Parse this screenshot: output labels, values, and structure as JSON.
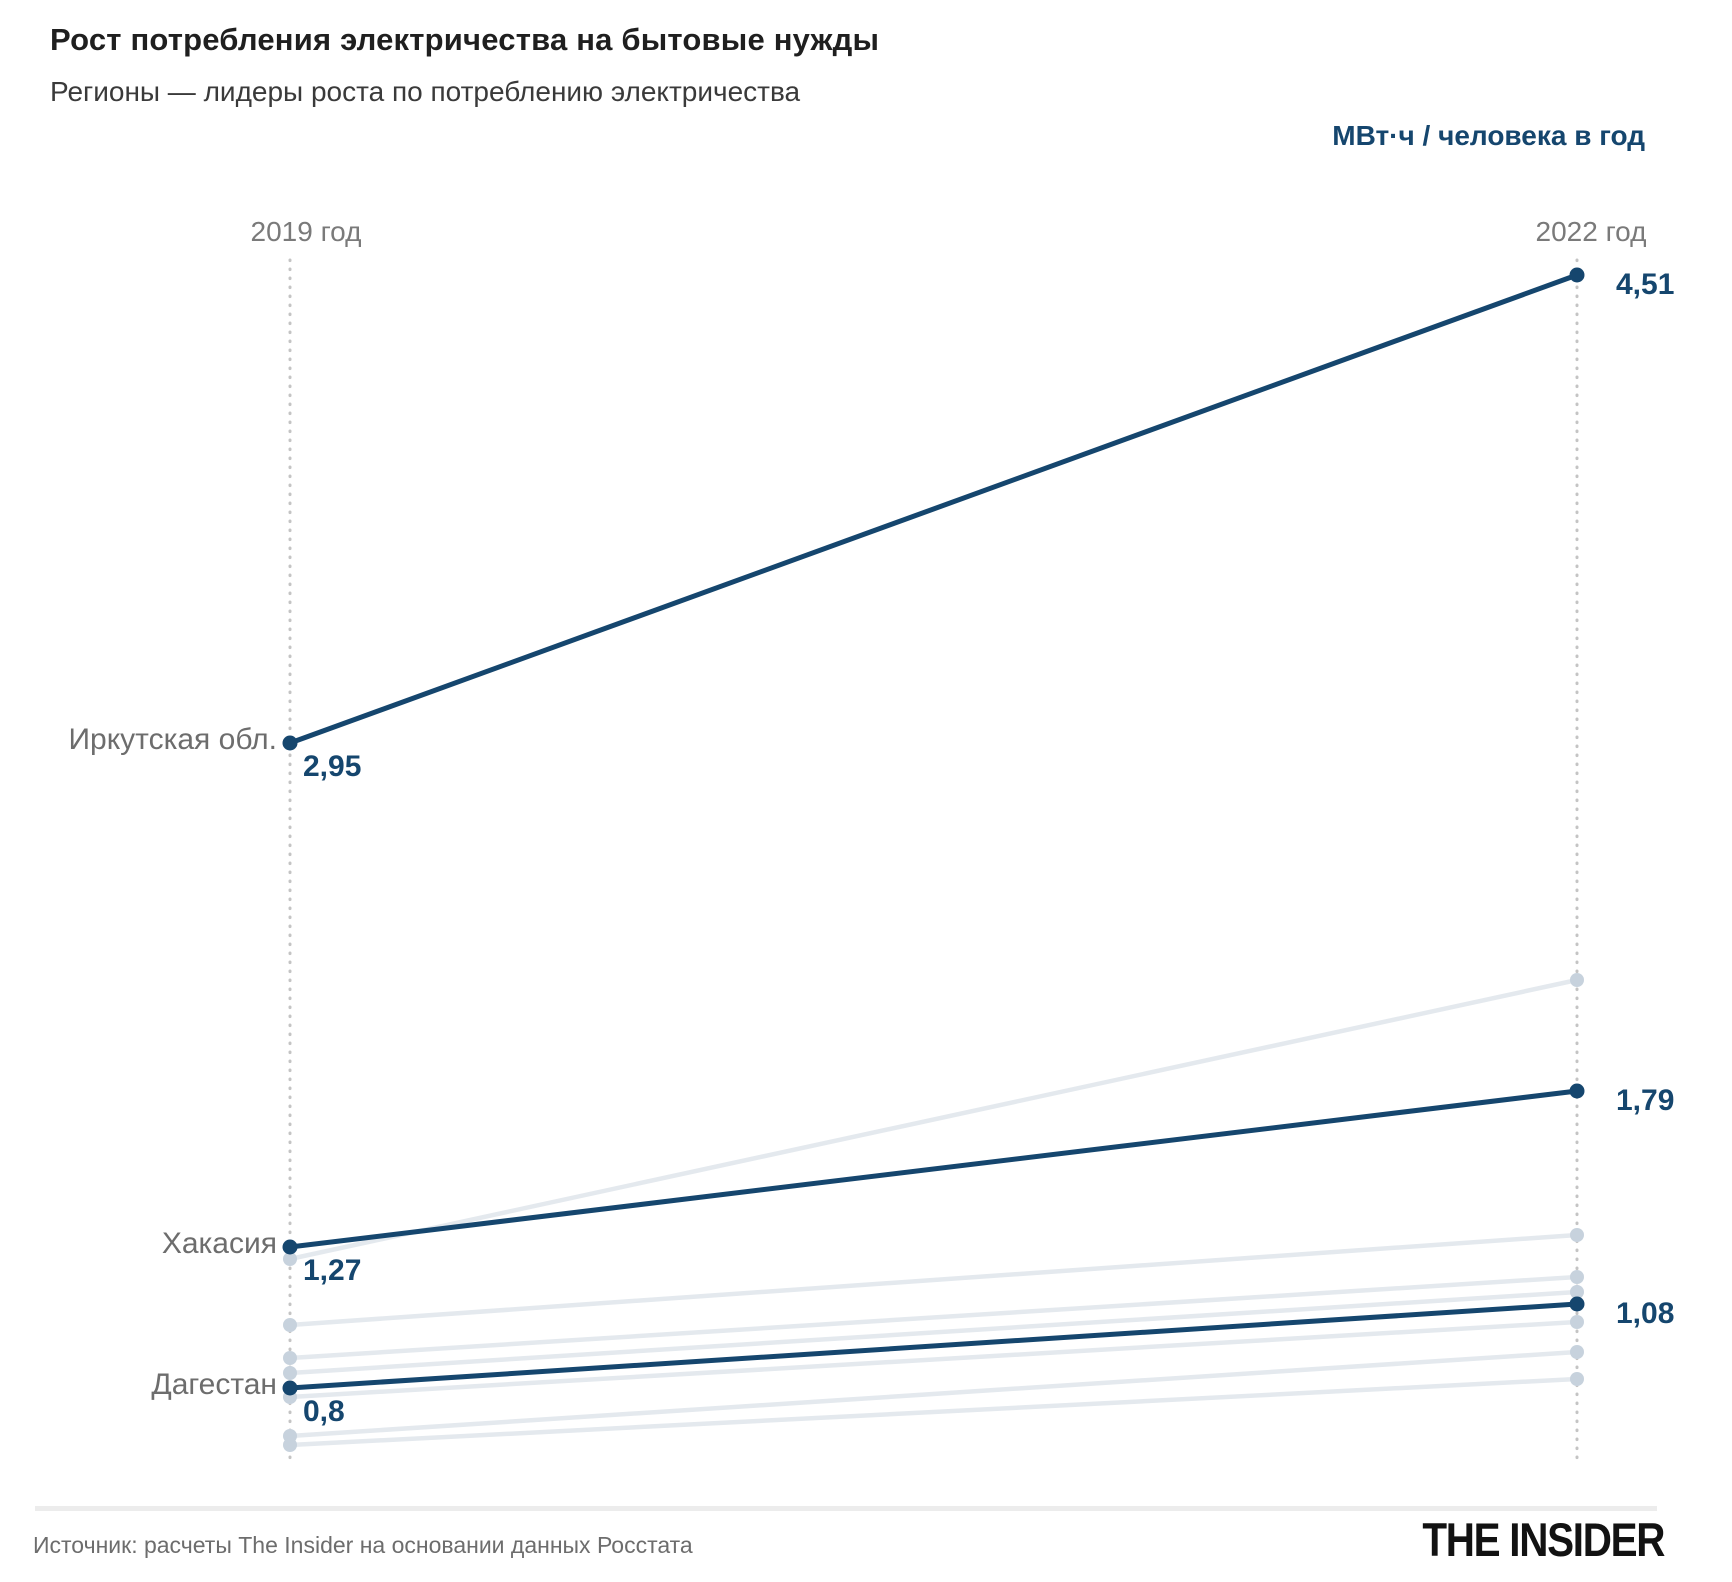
{
  "header": {
    "title": "Рост потребления электричества на бытовые нужды",
    "subtitle": "Регионы — лидеры роста по потреблению электричества",
    "unit_label": "МВт·ч / человека в год"
  },
  "chart_data": {
    "type": "line",
    "subtype": "slope-chart",
    "title": "Рост потребления электричества на бытовые нужды",
    "subtitle": "Регионы — лидеры роста по потреблению электричества",
    "unit": "МВт·ч / человека в год",
    "columns": [
      "2019 год",
      "2022 год"
    ],
    "ylim": [
      0.5,
      4.7
    ],
    "grid": false,
    "legend_position": "none",
    "series": [
      {
        "name": "Иркутская обл.",
        "values": [
          2.95,
          4.51
        ],
        "labels": [
          "2,95",
          "4,51"
        ],
        "highlight": true
      },
      {
        "name": "Хакасия",
        "values": [
          1.27,
          1.79
        ],
        "labels": [
          "1,27",
          "1,79"
        ],
        "highlight": true
      },
      {
        "name": "Дагестан",
        "values": [
          0.8,
          1.08
        ],
        "labels": [
          "0,8",
          "1,08"
        ],
        "highlight": true
      },
      {
        "name": "",
        "values": [
          1.23,
          2.16
        ],
        "labels": [
          "",
          ""
        ],
        "highlight": false
      },
      {
        "name": "",
        "values": [
          1.01,
          1.31
        ],
        "labels": [
          "",
          ""
        ],
        "highlight": false
      },
      {
        "name": "",
        "values": [
          0.9,
          1.17
        ],
        "labels": [
          "",
          ""
        ],
        "highlight": false
      },
      {
        "name": "",
        "values": [
          0.85,
          1.12
        ],
        "labels": [
          "",
          ""
        ],
        "highlight": false
      },
      {
        "name": "",
        "values": [
          0.77,
          1.02
        ],
        "labels": [
          "",
          ""
        ],
        "highlight": false
      },
      {
        "name": "",
        "values": [
          0.64,
          0.92
        ],
        "labels": [
          "",
          ""
        ],
        "highlight": false
      },
      {
        "name": "",
        "values": [
          0.61,
          0.83
        ],
        "labels": [
          "",
          ""
        ],
        "highlight": false
      }
    ],
    "colors": {
      "highlight": "#15466e",
      "muted_line": "#e4e9ee",
      "muted_dot": "#c7d2dd",
      "guide": "#c4c4c4"
    }
  },
  "footer": {
    "source": "Источник: расчеты The Insider на основании данных Росстата",
    "logo": "THE INSIDER"
  }
}
